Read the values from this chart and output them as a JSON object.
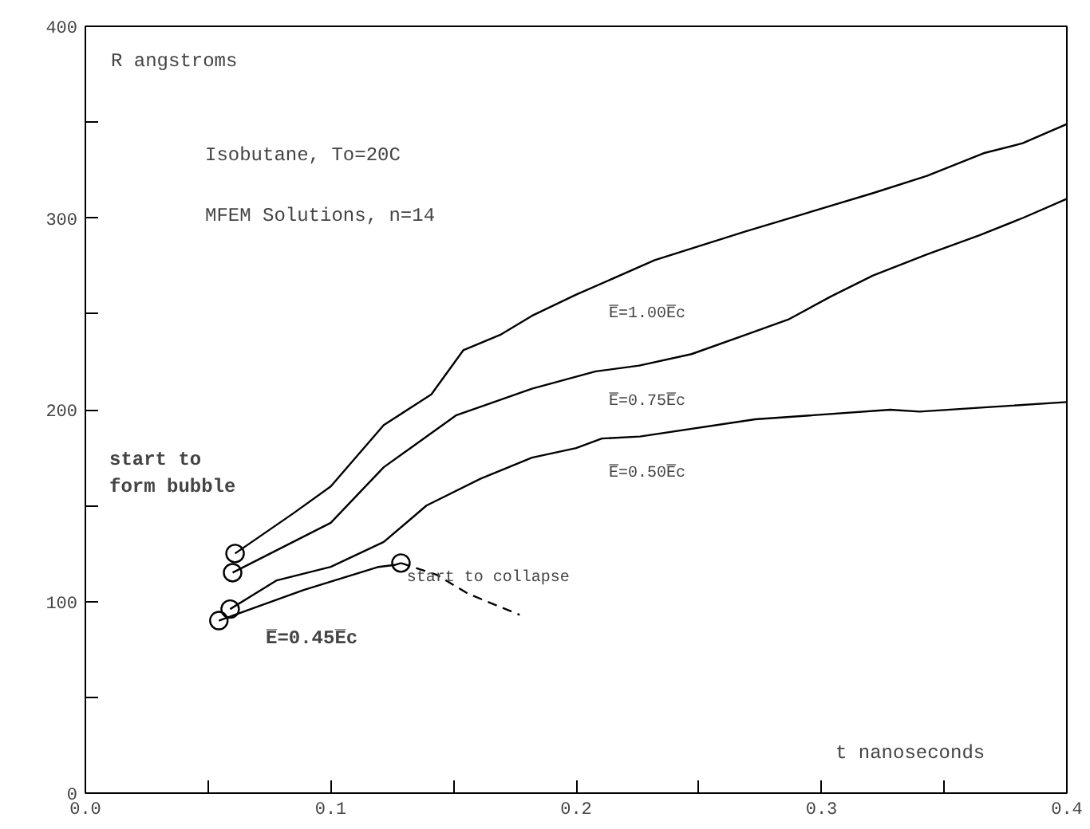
{
  "chart_data": {
    "type": "line",
    "xlabel": "t nanoseconds",
    "ylabel": "R angstroms",
    "xlim": [
      0,
      0.4
    ],
    "ylim": [
      0,
      400
    ],
    "xticks": [
      {
        "value": 0,
        "label": "0.0"
      },
      {
        "value": 0.05,
        "label": null
      },
      {
        "value": 0.1,
        "label": "0.1"
      },
      {
        "value": 0.15,
        "label": null
      },
      {
        "value": 0.2,
        "label": "0.2"
      },
      {
        "value": 0.25,
        "label": null
      },
      {
        "value": 0.3,
        "label": "0.3"
      },
      {
        "value": 0.35,
        "label": null
      },
      {
        "value": 0.4,
        "label": "0.4"
      }
    ],
    "yticks": [
      0,
      {
        "value": 50,
        "label": null
      },
      100,
      {
        "value": 150,
        "label": null
      },
      200,
      {
        "value": 250,
        "label": null
      },
      300,
      {
        "value": 350,
        "label": null
      },
      400
    ],
    "grid": false,
    "marker": "none",
    "line_style": "solid",
    "series": [
      {
        "color": "#000000",
        "x": [
          0.061,
          0.0848,
          0.1,
          0.1216,
          0.141,
          0.154,
          0.169,
          0.182,
          0.2,
          0.232,
          0.269,
          0.295,
          0.321,
          0.343,
          0.3666,
          0.382,
          0.4
        ],
        "values": [
          125,
          146,
          160,
          192,
          208,
          231,
          239,
          249,
          260,
          278,
          293,
          303,
          313,
          322,
          334,
          339,
          349
        ]
      },
      {
        "color": "#000000",
        "x": [
          0.06,
          0.1,
          0.1216,
          0.151,
          0.182,
          0.208,
          0.2257,
          0.247,
          0.269,
          0.2864,
          0.3037,
          0.321,
          0.343,
          0.3644,
          0.382,
          0.4
        ],
        "values": [
          115,
          141,
          170,
          197,
          211,
          220,
          223,
          229,
          239,
          247,
          259,
          270,
          281,
          291,
          300,
          310
        ]
      },
      {
        "color": "#000000",
        "x": [
          0.059,
          0.078,
          0.1,
          0.1216,
          0.139,
          0.161,
          0.182,
          0.2,
          0.2105,
          0.226,
          0.273,
          0.328,
          0.34,
          0.4
        ],
        "values": [
          96,
          111,
          118,
          131,
          150,
          164,
          175,
          180,
          185,
          186,
          195,
          200,
          199,
          204
        ]
      },
      {
        "color": "#000000",
        "x": [
          0.0544,
          0.089,
          0.1195,
          0.126,
          0.1286
        ],
        "values": [
          90,
          106,
          118,
          119,
          120
        ]
      },
      {
        "color": "#000000",
        "line_style": "dashed",
        "x": [
          0.1286,
          0.143,
          0.156,
          0.177
        ],
        "values": [
          120,
          114,
          104,
          93
        ]
      },
      {
        "type": "scatter",
        "marker": "circle",
        "color": "#000000",
        "x": [
          0.061,
          0.06,
          0.059,
          0.0544,
          0.1286
        ],
        "values": [
          125,
          115,
          96,
          90,
          120
        ]
      }
    ],
    "annotations": [
      "Isobutane, To=20C",
      "MFEM Solutions, n=14",
      "E̅=1.00E̅c",
      "E̅=0.75E̅c",
      "E̅=0.50E̅c",
      "E̅=0.45E̅c",
      {
        "text": "start to collapse",
        "x": 0.131,
        "y": 112
      },
      "start to\nform bubble"
    ]
  }
}
